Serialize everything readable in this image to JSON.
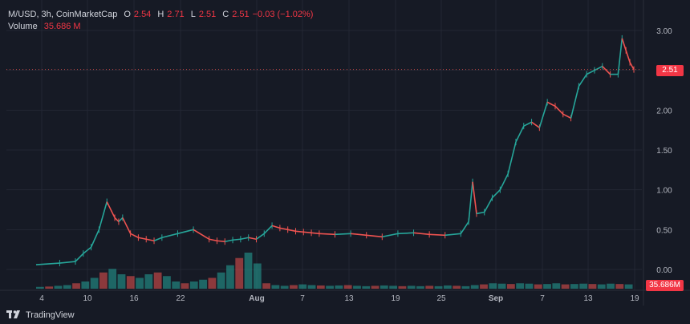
{
  "legend": {
    "symbol": "M/USD, 3h, CoinMarketCap",
    "o_label": "O",
    "o_value": "2.54",
    "h_label": "H",
    "h_value": "2.71",
    "l_label": "L",
    "l_value": "2.51",
    "c_label": "C",
    "c_value": "2.51",
    "change": "−0.03 (−1.02%)",
    "volume_label": "Volume",
    "volume_value": "35.686 M"
  },
  "price_tag": "2.51",
  "volume_tag": "35.686M",
  "footer": {
    "brand": "TradingView"
  },
  "colors": {
    "up": "#26a69a",
    "down": "#ef5350",
    "grid": "#232734",
    "axis_text": "#b2b5be",
    "background": "#161a25"
  },
  "chart_data": {
    "type": "line",
    "title": "",
    "xlabel": "",
    "ylabel": "",
    "x_ticks": [
      "4",
      "10",
      "16",
      "22",
      "Aug",
      "7",
      "13",
      "19",
      "25",
      "Sep",
      "7",
      "13",
      "19"
    ],
    "y_ticks": [
      "3.00",
      "2.50",
      "2.00",
      "1.50",
      "1.00",
      "0.50",
      "0.00"
    ],
    "ylim": [
      -0.15,
      3.1
    ],
    "series": [
      {
        "x": [
          0,
          3,
          5,
          6,
          7,
          8,
          9,
          10,
          10.5,
          11,
          12,
          13,
          14,
          15,
          16,
          18,
          20,
          22,
          23,
          24,
          25,
          26,
          27,
          28,
          29,
          30,
          31,
          32,
          33,
          34,
          35,
          36,
          38,
          40,
          42,
          44,
          46,
          48,
          50,
          52,
          54,
          55,
          55.5,
          56,
          57,
          58,
          59,
          60,
          61,
          62,
          63,
          64,
          65,
          66,
          67,
          68,
          69,
          70,
          71,
          72,
          73,
          74,
          74.5,
          75,
          75.5,
          76
        ],
        "values": [
          0.06,
          0.08,
          0.1,
          0.2,
          0.28,
          0.5,
          0.85,
          0.65,
          0.6,
          0.65,
          0.45,
          0.4,
          0.38,
          0.36,
          0.4,
          0.45,
          0.5,
          0.38,
          0.36,
          0.35,
          0.37,
          0.38,
          0.4,
          0.38,
          0.45,
          0.55,
          0.52,
          0.5,
          0.48,
          0.47,
          0.46,
          0.45,
          0.44,
          0.45,
          0.43,
          0.41,
          0.45,
          0.46,
          0.44,
          0.43,
          0.45,
          0.6,
          1.1,
          0.7,
          0.72,
          0.9,
          1.0,
          1.2,
          1.6,
          1.8,
          1.85,
          1.78,
          2.1,
          2.05,
          1.95,
          1.9,
          2.3,
          2.45,
          2.5,
          2.55,
          2.45,
          2.45,
          2.9,
          2.75,
          2.6,
          2.51
        ]
      }
    ],
    "volume": [
      0.05,
      0.06,
      0.08,
      0.1,
      0.15,
      0.2,
      0.3,
      0.45,
      0.55,
      0.4,
      0.35,
      0.3,
      0.4,
      0.45,
      0.35,
      0.2,
      0.15,
      0.2,
      0.25,
      0.3,
      0.45,
      0.65,
      0.85,
      1.0,
      0.7,
      0.15,
      0.1,
      0.08,
      0.1,
      0.12,
      0.1,
      0.09,
      0.08,
      0.09,
      0.1,
      0.08,
      0.07,
      0.08,
      0.09,
      0.08,
      0.07,
      0.08,
      0.07,
      0.08,
      0.07,
      0.09,
      0.08,
      0.07,
      0.1,
      0.12,
      0.15,
      0.14,
      0.13,
      0.15,
      0.14,
      0.12,
      0.13,
      0.15,
      0.12,
      0.13,
      0.14,
      0.13,
      0.12,
      0.14,
      0.13,
      0.12
    ]
  }
}
